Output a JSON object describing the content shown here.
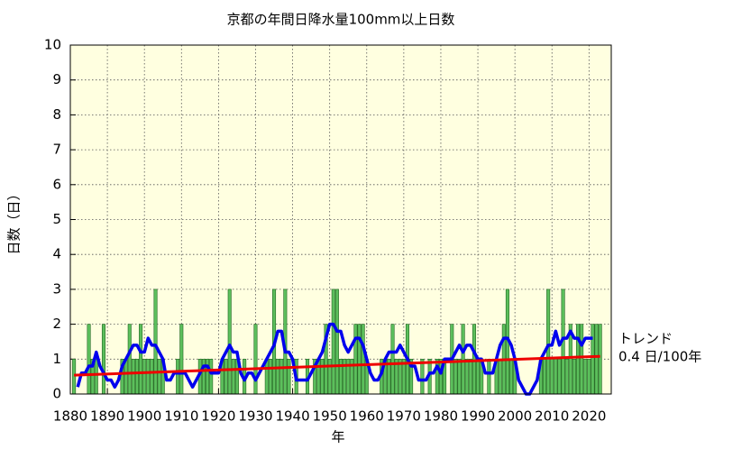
{
  "chart_data": {
    "type": "bar",
    "title": "京都の年間日降水量100mm以上日数",
    "x_label": "年",
    "y_label": "日数（日）",
    "x": [
      1880,
      1881,
      1882,
      1883,
      1884,
      1885,
      1886,
      1887,
      1888,
      1889,
      1890,
      1891,
      1892,
      1893,
      1894,
      1895,
      1896,
      1897,
      1898,
      1899,
      1900,
      1901,
      1902,
      1903,
      1904,
      1905,
      1906,
      1907,
      1908,
      1909,
      1910,
      1911,
      1912,
      1913,
      1914,
      1915,
      1916,
      1917,
      1918,
      1919,
      1920,
      1921,
      1922,
      1923,
      1924,
      1925,
      1926,
      1927,
      1928,
      1929,
      1930,
      1931,
      1932,
      1933,
      1934,
      1935,
      1936,
      1937,
      1938,
      1939,
      1940,
      1941,
      1942,
      1943,
      1944,
      1945,
      1946,
      1947,
      1948,
      1949,
      1950,
      1951,
      1952,
      1953,
      1954,
      1955,
      1956,
      1957,
      1958,
      1959,
      1960,
      1961,
      1962,
      1963,
      1964,
      1965,
      1966,
      1967,
      1968,
      1969,
      1970,
      1971,
      1972,
      1973,
      1974,
      1975,
      1976,
      1977,
      1978,
      1979,
      1980,
      1981,
      1982,
      1983,
      1984,
      1985,
      1986,
      1987,
      1988,
      1989,
      1990,
      1991,
      1992,
      1993,
      1994,
      1995,
      1996,
      1997,
      1998,
      1999,
      2000,
      2001,
      2002,
      2003,
      2004,
      2005,
      2006,
      2007,
      2008,
      2009,
      2010,
      2011,
      2012,
      2013,
      2014,
      2015,
      2016,
      2017,
      2018,
      2019,
      2020,
      2021,
      2022,
      2023
    ],
    "series": [
      {
        "type": "bar",
        "color": "#5cbf5c",
        "values": [
          0,
          1,
          0,
          0,
          0,
          2,
          1,
          1,
          0,
          2,
          0,
          0,
          0,
          0,
          1,
          1,
          2,
          1,
          1,
          2,
          1,
          1,
          1,
          3,
          1,
          1,
          0,
          0,
          0,
          1,
          2,
          0,
          0,
          0,
          0,
          1,
          1,
          1,
          1,
          0,
          0,
          1,
          1,
          3,
          1,
          1,
          0,
          1,
          0,
          0,
          2,
          0,
          0,
          1,
          1,
          3,
          1,
          1,
          3,
          1,
          0,
          1,
          0,
          0,
          1,
          0,
          1,
          1,
          1,
          2,
          1,
          3,
          3,
          1,
          1,
          1,
          1,
          2,
          2,
          2,
          1,
          0,
          0,
          0,
          1,
          1,
          1,
          2,
          1,
          1,
          1,
          2,
          1,
          0,
          0,
          1,
          0,
          1,
          0,
          1,
          1,
          1,
          0,
          2,
          1,
          1,
          2,
          1,
          1,
          2,
          1,
          1,
          0,
          1,
          0,
          1,
          1,
          2,
          3,
          1,
          1,
          0,
          0,
          0,
          0,
          0,
          0,
          1,
          1,
          3,
          1,
          1,
          1,
          3,
          1,
          2,
          1,
          2,
          2,
          1,
          1,
          2,
          2,
          2
        ]
      },
      {
        "type": "line",
        "color": "#0000ee",
        "values": [
          null,
          null,
          0.2,
          0.6,
          0.6,
          0.8,
          0.8,
          1.2,
          0.8,
          0.6,
          0.4,
          0.4,
          0.2,
          0.4,
          0.8,
          1.0,
          1.2,
          1.4,
          1.4,
          1.2,
          1.2,
          1.6,
          1.4,
          1.4,
          1.2,
          1.0,
          0.4,
          0.4,
          0.6,
          0.6,
          0.6,
          0.6,
          0.4,
          0.2,
          0.4,
          0.6,
          0.8,
          0.8,
          0.6,
          0.6,
          0.6,
          1.0,
          1.2,
          1.4,
          1.2,
          1.2,
          0.6,
          0.4,
          0.6,
          0.6,
          0.4,
          0.6,
          0.8,
          1.0,
          1.2,
          1.4,
          1.8,
          1.8,
          1.2,
          1.2,
          1.0,
          0.4,
          0.4,
          0.4,
          0.4,
          0.6,
          0.8,
          1.0,
          1.2,
          1.6,
          2.0,
          2.0,
          1.8,
          1.8,
          1.4,
          1.2,
          1.4,
          1.6,
          1.6,
          1.4,
          1.0,
          0.6,
          0.4,
          0.4,
          0.6,
          1.0,
          1.2,
          1.2,
          1.2,
          1.4,
          1.2,
          1.0,
          0.8,
          0.8,
          0.4,
          0.4,
          0.4,
          0.6,
          0.6,
          0.8,
          0.6,
          1.0,
          1.0,
          1.0,
          1.2,
          1.4,
          1.2,
          1.4,
          1.4,
          1.2,
          1.0,
          1.0,
          0.6,
          0.6,
          0.6,
          1.0,
          1.4,
          1.6,
          1.6,
          1.4,
          1.0,
          0.4,
          0.2,
          0,
          0,
          0.2,
          0.4,
          1.0,
          1.2,
          1.4,
          1.4,
          1.8,
          1.4,
          1.6,
          1.6,
          1.8,
          1.6,
          1.6,
          1.4,
          1.6,
          1.6,
          1.6,
          null,
          null
        ]
      }
    ],
    "trend": {
      "color": "#ee0000",
      "x": [
        1881,
        2023
      ],
      "values": [
        0.54,
        1.08
      ]
    },
    "annotations": [
      "トレンド",
      "0.4 日/100年"
    ],
    "xlim": [
      1880,
      2026
    ],
    "ylim": [
      0,
      10
    ],
    "xticks": [
      1880,
      1890,
      1900,
      1910,
      1920,
      1930,
      1940,
      1950,
      1960,
      1970,
      1980,
      1990,
      2000,
      2010,
      2020
    ],
    "yticks": [
      0,
      1,
      2,
      3,
      4,
      5,
      6,
      7,
      8,
      9,
      10
    ],
    "grid": true,
    "background": "#ffffe0"
  }
}
